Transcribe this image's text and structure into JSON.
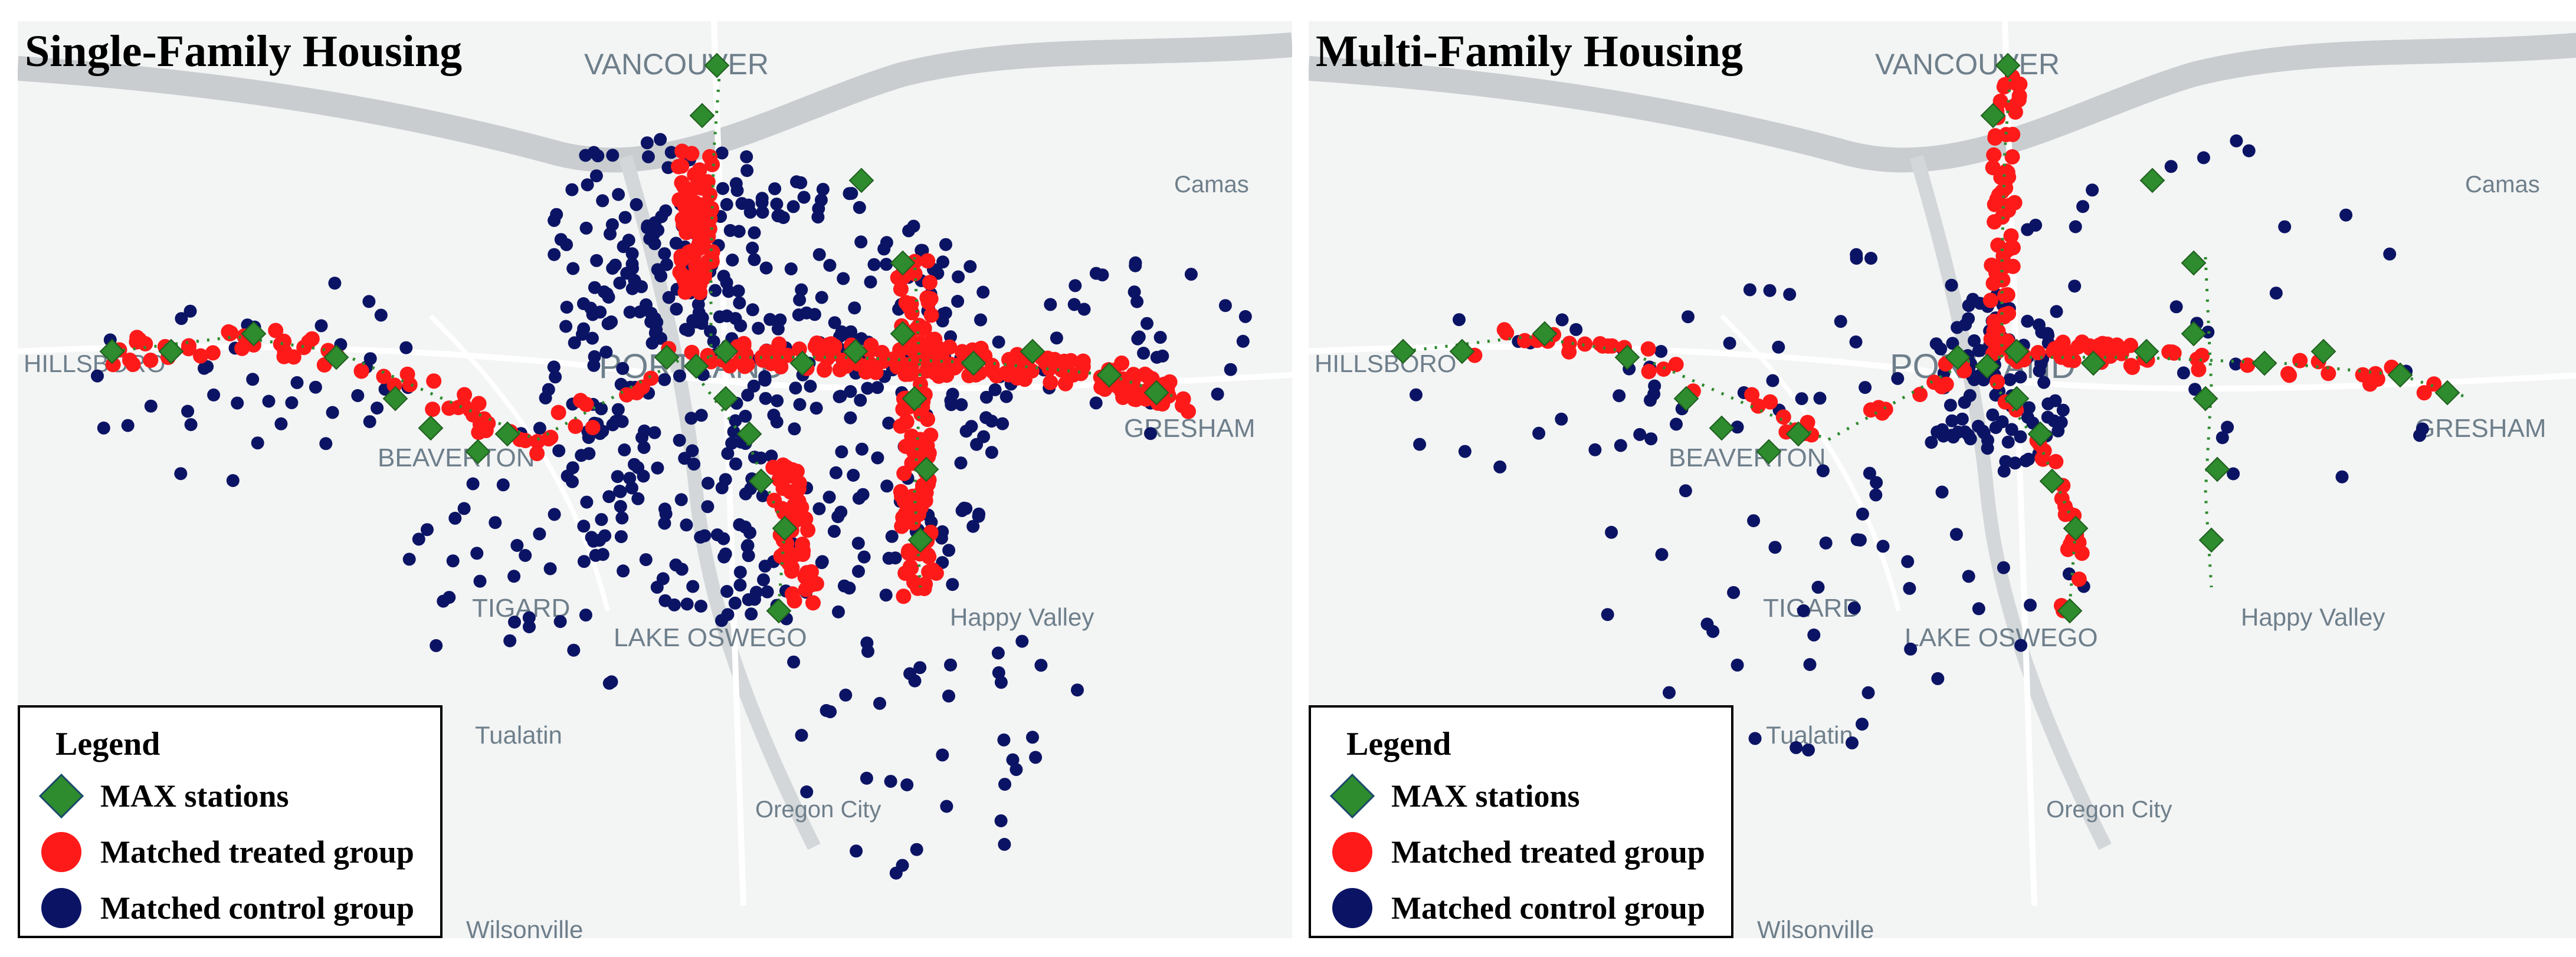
{
  "figure": {
    "panels": [
      {
        "id": "single",
        "title": "Single-Family Housing",
        "map_labels": [
          "VANCOUVER",
          "Camas",
          "HILLSBORO",
          "PORTLAND",
          "BEAVERTON",
          "GRESHAM",
          "TIGARD",
          "LAKE OSWEGO",
          "Happy Valley",
          "Tualatin",
          "Oregon City",
          "Wilsonville"
        ]
      },
      {
        "id": "multi",
        "title": "Multi-Family Housing",
        "map_labels": [
          "VANCOUVER",
          "Camas",
          "HILLSBORO",
          "PORTLAND",
          "BEAVERTON",
          "GRESHAM",
          "TIGARD",
          "LAKE OSWEGO",
          "Happy Valley",
          "Tualatin",
          "Oregon City",
          "Wilsonville"
        ]
      }
    ],
    "legend": {
      "title": "Legend",
      "items": [
        {
          "label": "MAX stations",
          "shape": "diamond",
          "color": "#2e8b2e"
        },
        {
          "label": "Matched treated group",
          "shape": "circle",
          "color": "#ff1a1a"
        },
        {
          "label": "Matched control group",
          "shape": "circle",
          "color": "#0b1464"
        }
      ]
    },
    "colors": {
      "station": "#2e8b2e",
      "treated": "#ff1a1a",
      "control": "#0b1464",
      "map_bg": "#f3f4f4",
      "water": "#c9cdd0",
      "road": "#ffffff",
      "label": "#6e7f8b"
    }
  }
}
